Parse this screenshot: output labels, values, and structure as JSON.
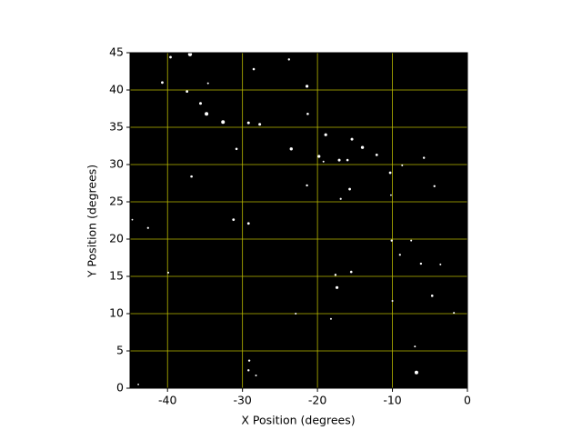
{
  "chart_data": {
    "type": "scatter",
    "xlabel": "X Position (degrees)",
    "ylabel": "Y Position (degrees)",
    "xlim": [
      -45,
      0
    ],
    "ylim": [
      0,
      45
    ],
    "xticks": [
      -40,
      -30,
      -20,
      -10,
      0
    ],
    "yticks": [
      0,
      5,
      10,
      15,
      20,
      25,
      30,
      35,
      40,
      45
    ],
    "grid": true,
    "grid_color": "#b8b800",
    "background": "#000000",
    "color": "#ffffff",
    "x": [
      -37.0,
      -39.6,
      -28.5,
      -23.8,
      -40.7,
      -37.4,
      -34.6,
      -35.6,
      -34.8,
      -32.6,
      -29.2,
      -27.7,
      -21.4,
      -21.3,
      -18.9,
      -15.4,
      -14.0,
      -12.1,
      -23.5,
      -30.8,
      -19.8,
      -19.2,
      -17.1,
      -16.0,
      -10.3,
      -5.8,
      -36.8,
      -21.4,
      -15.7,
      -4.4,
      -16.9,
      -10.2,
      -31.2,
      -29.2,
      -42.6,
      -44.7,
      -10.1,
      -7.5,
      -9.0,
      -6.2,
      -3.6,
      -15.5,
      -17.6,
      -17.4,
      -4.7,
      -10.0,
      -22.9,
      -1.8,
      -18.2,
      -7.0,
      -6.8,
      -29.1,
      -29.2,
      -28.2,
      -43.9,
      -39.9,
      -8.7
    ],
    "values": [
      44.8,
      44.4,
      42.8,
      44.1,
      41.0,
      39.8,
      40.9,
      38.2,
      36.8,
      35.7,
      35.6,
      35.4,
      40.5,
      36.8,
      34.0,
      33.4,
      32.3,
      31.3,
      32.1,
      32.1,
      31.1,
      30.4,
      30.6,
      30.6,
      28.9,
      30.9,
      28.4,
      27.2,
      26.7,
      27.1,
      25.4,
      25.9,
      22.6,
      22.1,
      21.5,
      22.6,
      19.8,
      19.8,
      17.9,
      16.7,
      16.6,
      15.6,
      15.2,
      13.5,
      12.4,
      11.7,
      10.0,
      10.1,
      9.3,
      5.6,
      2.1,
      3.7,
      2.4,
      1.7,
      0.5,
      15.5,
      29.9
    ],
    "sizes": [
      2.2,
      1.4,
      1.3,
      1.2,
      1.4,
      1.4,
      1.0,
      1.5,
      2.0,
      2.0,
      1.5,
      1.5,
      1.6,
      1.3,
      1.6,
      1.5,
      1.7,
      1.4,
      1.7,
      1.3,
      1.6,
      1.0,
      1.5,
      1.3,
      1.4,
      1.2,
      1.3,
      1.2,
      1.4,
      1.2,
      1.1,
      0.9,
      1.4,
      1.4,
      1.1,
      0.9,
      1.2,
      1.0,
      1.1,
      1.2,
      1.0,
      1.3,
      1.2,
      1.6,
      1.3,
      1.0,
      1.0,
      1.0,
      1.0,
      1.0,
      2.0,
      1.2,
      1.2,
      1.0,
      0.9,
      1.0,
      1.0
    ]
  }
}
